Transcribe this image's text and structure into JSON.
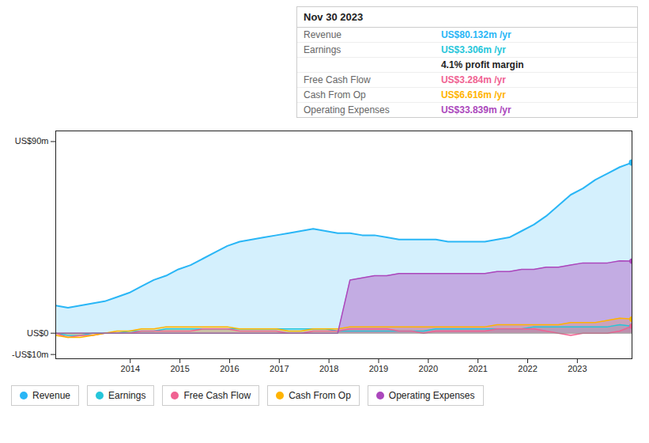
{
  "chart_data": {
    "type": "area",
    "title": "Nov 30 2023",
    "x": [
      2012.5,
      2012.7468,
      2012.9936,
      2013.2404,
      2013.4872,
      2013.734,
      2013.9809,
      2014.2277,
      2014.4745,
      2014.7213,
      2014.9681,
      2015.2149,
      2015.4617,
      2015.7085,
      2015.9553,
      2016.2021,
      2016.4489,
      2016.6957,
      2016.9426,
      2017.1894,
      2017.4362,
      2017.683,
      2017.9298,
      2018.1766,
      2018.4234,
      2018.6702,
      2018.917,
      2019.1638,
      2019.4106,
      2019.6574,
      2019.9043,
      2020.1511,
      2020.3979,
      2020.6447,
      2020.8915,
      2021.1383,
      2021.3851,
      2021.6319,
      2021.8787,
      2022.1255,
      2022.3723,
      2022.6191,
      2022.866,
      2023.1128,
      2023.3596,
      2023.6064,
      2023.8532,
      2024.1
    ],
    "series": [
      {
        "name": "Revenue",
        "color": "#29b6f6",
        "values": [
          13,
          12,
          13,
          14,
          15,
          17,
          19,
          22,
          25,
          27,
          30,
          32,
          35,
          38,
          41,
          43,
          44,
          45,
          46,
          47,
          48,
          49,
          48,
          47,
          47,
          46,
          46,
          45,
          44,
          44,
          44,
          44,
          43,
          43,
          43,
          43,
          44,
          45,
          48,
          51,
          55,
          60,
          65,
          68,
          72,
          75,
          78,
          80.132
        ]
      },
      {
        "name": "Earnings",
        "color": "#26c6da",
        "values": [
          0,
          -1,
          -1,
          0,
          0,
          0,
          1,
          1,
          1,
          2,
          2,
          2,
          2,
          2,
          2,
          2,
          2,
          2,
          2,
          2,
          2,
          2,
          2,
          1,
          1,
          1,
          1,
          1,
          1,
          1,
          1,
          2,
          2,
          2,
          2,
          2,
          2,
          2,
          2,
          3,
          3,
          3,
          3,
          3,
          3,
          3,
          4,
          3.306
        ]
      },
      {
        "name": "Free Cash Flow",
        "color": "#f06292",
        "values": [
          0,
          -2,
          -1,
          -1,
          0,
          0,
          0,
          1,
          1,
          1,
          1,
          1,
          2,
          2,
          2,
          1,
          1,
          1,
          1,
          0,
          0,
          1,
          1,
          1,
          2,
          2,
          2,
          2,
          1,
          1,
          0,
          1,
          1,
          1,
          1,
          1,
          2,
          2,
          2,
          2,
          1,
          0,
          -1,
          0,
          0,
          0,
          1,
          3.284
        ]
      },
      {
        "name": "Cash From Op",
        "color": "#ffb300",
        "values": [
          -1,
          -2,
          -2,
          -1,
          0,
          1,
          1,
          2,
          2,
          3,
          3,
          3,
          3,
          3,
          3,
          2,
          2,
          2,
          2,
          1,
          1,
          2,
          2,
          2,
          3,
          3,
          3,
          3,
          3,
          3,
          3,
          3,
          3,
          3,
          3,
          3,
          4,
          4,
          4,
          4,
          4,
          4,
          5,
          5,
          5,
          6,
          7,
          6.616
        ]
      },
      {
        "name": "Operating Expenses",
        "color": "#ab47bc",
        "values": [
          0,
          0,
          0,
          0,
          0,
          0,
          0,
          0,
          0,
          0,
          0,
          0,
          0,
          0,
          0,
          0,
          0,
          0,
          0,
          0,
          0,
          0,
          0,
          0,
          25,
          26,
          27,
          27,
          28,
          28,
          28,
          28,
          28,
          28,
          28,
          28,
          29,
          29,
          30,
          30,
          31,
          31,
          32,
          33,
          33,
          33,
          34,
          33.839
        ]
      }
    ],
    "xlim": [
      2012.5,
      2024.1
    ],
    "xticks": [
      2014,
      2015,
      2016,
      2017,
      2018,
      2019,
      2020,
      2021,
      2022,
      2023
    ],
    "ylim": [
      -12,
      95
    ],
    "yticks": [
      {
        "value": 90,
        "label": "US$90m"
      },
      {
        "value": 0,
        "label": "US$0"
      },
      {
        "value": -10,
        "label": "-US$10m"
      }
    ],
    "legend": "bottom",
    "annotations": [
      {
        "name": "Revenue",
        "text": "US$80.132m /yr"
      },
      {
        "name": "Earnings",
        "text": "US$3.306m /yr"
      },
      {
        "text": "4.1% profit margin"
      },
      {
        "name": "Free Cash Flow",
        "text": "US$3.284m /yr"
      },
      {
        "name": "Cash From Op",
        "text": "US$6.616m /yr"
      },
      {
        "name": "Operating Expenses",
        "text": "US$33.839m /yr"
      }
    ]
  }
}
